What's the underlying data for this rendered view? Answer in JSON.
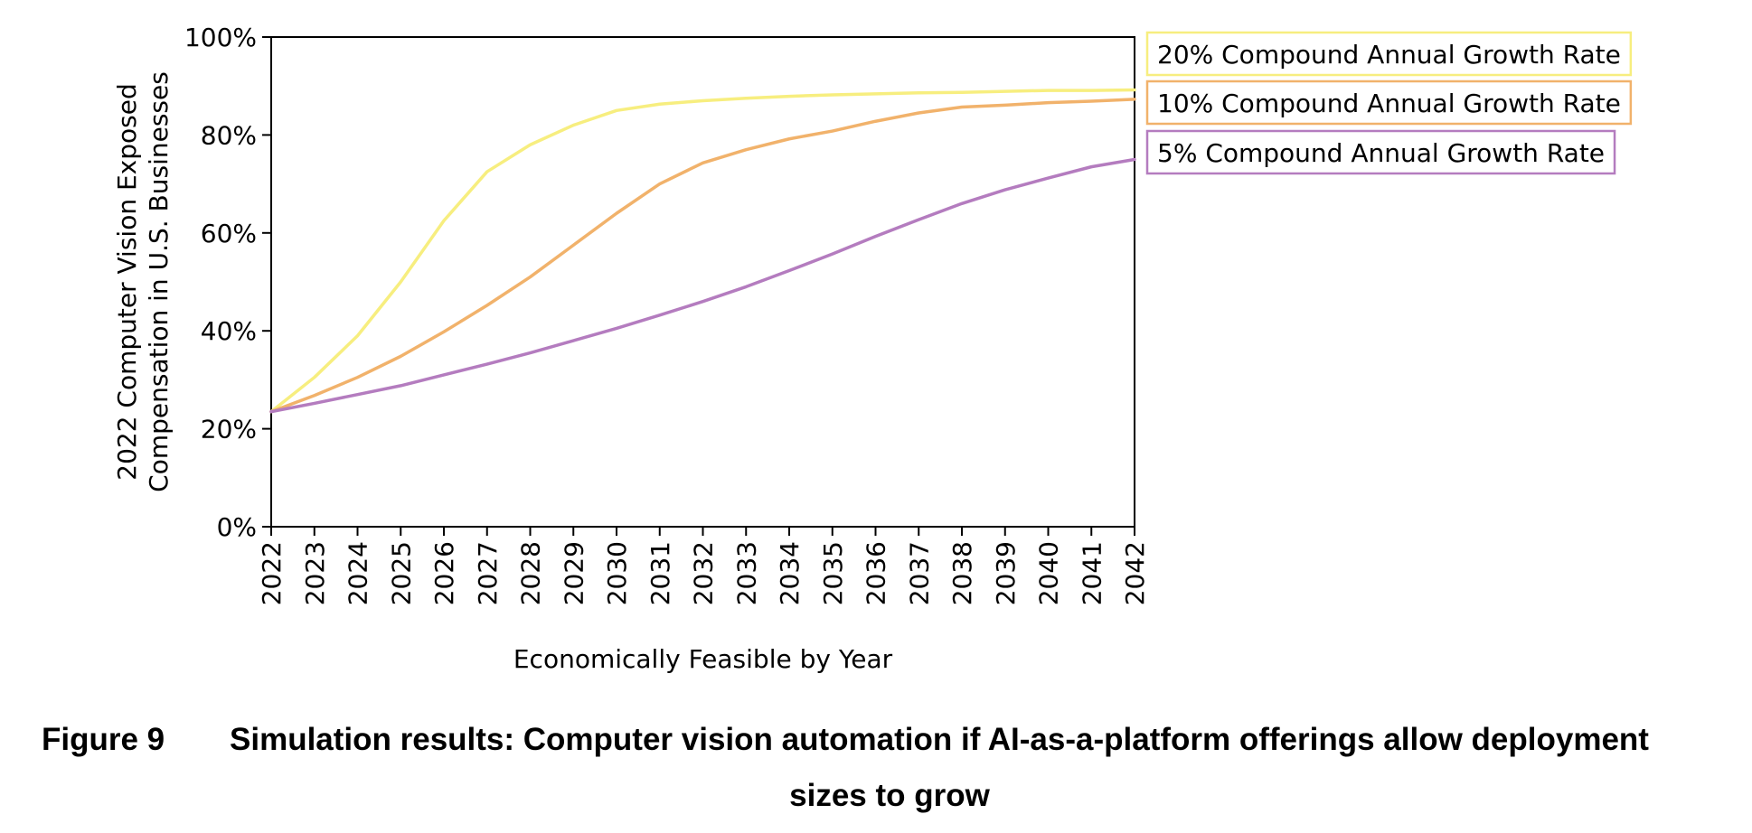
{
  "chart_data": {
    "type": "line",
    "x": [
      2022,
      2023,
      2024,
      2025,
      2026,
      2027,
      2028,
      2029,
      2030,
      2031,
      2032,
      2033,
      2034,
      2035,
      2036,
      2037,
      2038,
      2039,
      2040,
      2041,
      2042
    ],
    "series": [
      {
        "name": "20% Compound Annual Growth Rate",
        "color": "#f7ee7f",
        "values": [
          23.5,
          30.5,
          39,
          50,
          62.5,
          72.5,
          78,
          82,
          85,
          86.3,
          87,
          87.5,
          87.9,
          88.2,
          88.4,
          88.6,
          88.7,
          88.9,
          89.1,
          89.1,
          89.2
        ]
      },
      {
        "name": "10% Compound Annual Growth Rate",
        "color": "#f1b26b",
        "values": [
          23.5,
          26.8,
          30.5,
          34.8,
          39.8,
          45.2,
          51,
          57.5,
          64,
          70,
          74.3,
          77,
          79.2,
          80.8,
          82.8,
          84.5,
          85.7,
          86.1,
          86.6,
          86.9,
          87.3
        ]
      },
      {
        "name": "5% Compound Annual Growth Rate",
        "color": "#b47cbf",
        "values": [
          23.5,
          25.2,
          27,
          28.8,
          31,
          33.2,
          35.5,
          38,
          40.5,
          43.2,
          46,
          49,
          52.3,
          55.7,
          59.3,
          62.7,
          66,
          68.8,
          71.2,
          73.5,
          75
        ]
      }
    ],
    "xlabel": "Economically Feasible by Year",
    "ylabel_lines": [
      "2022 Computer Vision Exposed",
      "Compensation in U.S. Businesses"
    ],
    "ylim": [
      0,
      100
    ],
    "yticks": [
      0,
      20,
      40,
      60,
      80,
      100
    ],
    "ytick_labels": [
      "0%",
      "20%",
      "40%",
      "60%",
      "80%",
      "100%"
    ],
    "xtick_labels": [
      "2022",
      "2023",
      "2024",
      "2025",
      "2026",
      "2027",
      "2028",
      "2029",
      "2030",
      "2031",
      "2032",
      "2033",
      "2034",
      "2035",
      "2036",
      "2037",
      "2038",
      "2039",
      "2040",
      "2041",
      "2042"
    ],
    "grid": false,
    "legend_placement": "outside-right"
  },
  "caption": {
    "number": "Figure 9",
    "text_line1": "Simulation results: Computer vision automation if AI-as-a-platform offerings allow deployment",
    "text_line2": "sizes to grow"
  }
}
